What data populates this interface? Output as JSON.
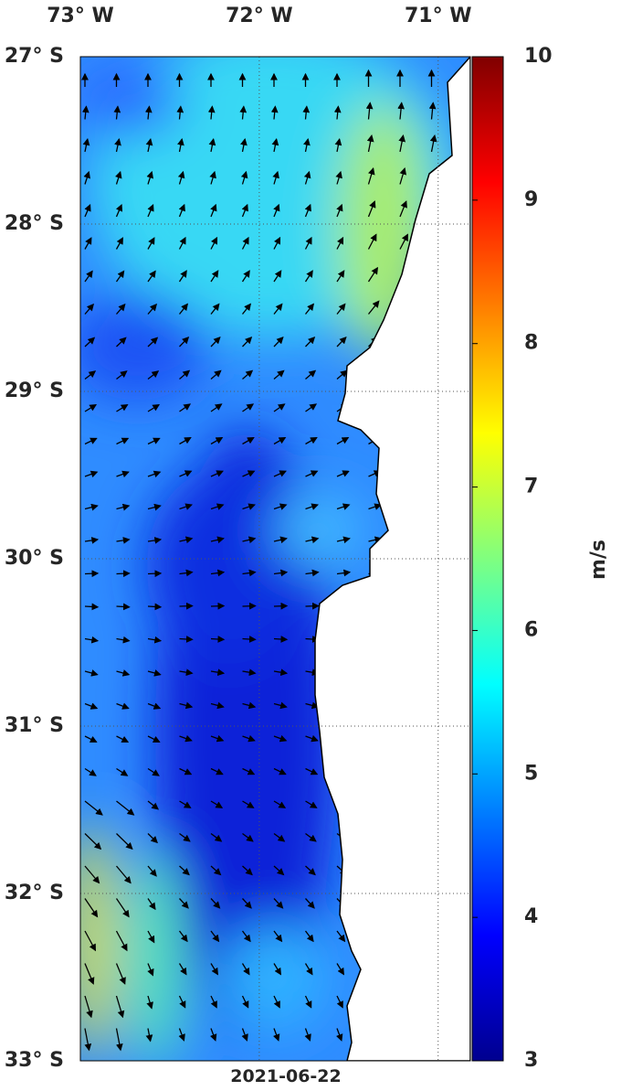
{
  "map": {
    "lonlim": [
      -73,
      -70.82
    ],
    "latlim": [
      -33,
      -27
    ],
    "lon_ticks": [
      {
        "value": -73,
        "label": "73° W"
      },
      {
        "value": -72,
        "label": "72° W"
      },
      {
        "value": -71,
        "label": "71° W"
      }
    ],
    "lat_ticks": [
      {
        "value": -27,
        "label": "27° S"
      },
      {
        "value": -28,
        "label": "28° S"
      },
      {
        "value": -29,
        "label": "29° S"
      },
      {
        "value": -30,
        "label": "30° S"
      },
      {
        "value": -31,
        "label": "31° S"
      },
      {
        "value": -32,
        "label": "32° S"
      },
      {
        "value": -33,
        "label": "33° S"
      }
    ],
    "date": "2021-06-22"
  },
  "colorbar": {
    "lim": [
      3,
      10
    ],
    "ticks": [
      3,
      4,
      5,
      6,
      7,
      8,
      9,
      10
    ],
    "label": "m/s"
  }
}
